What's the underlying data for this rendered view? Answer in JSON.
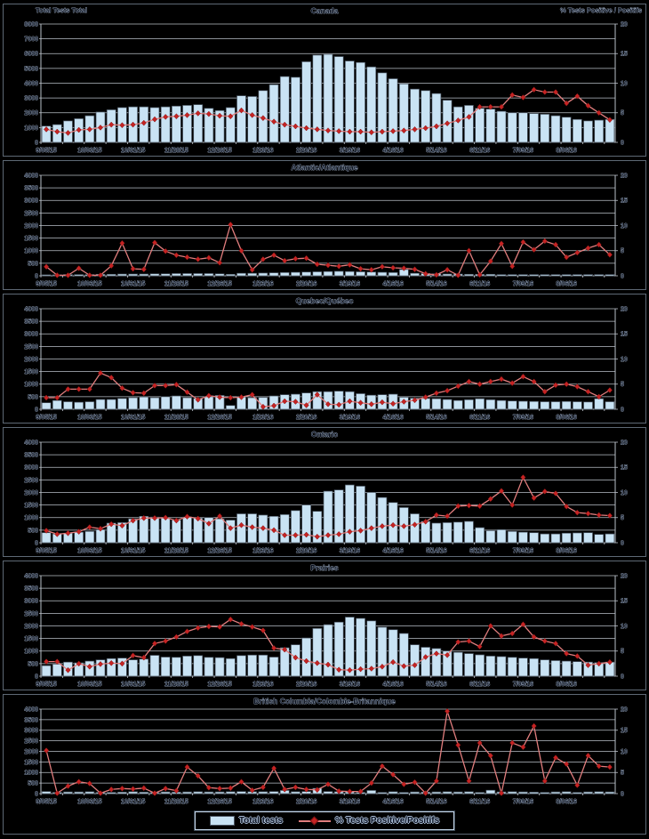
{
  "figure_name": "Respiratory virus detections surveillance charts",
  "legend": {
    "bar_label": "Total tests",
    "line_label": "% Tests Positive/Positifs"
  },
  "colors": {
    "background": "#000000",
    "bar_fill": "#c9e3f4",
    "bar_stroke": "#4b5663",
    "line": "#e07d7d",
    "marker": "#c62323",
    "marker_stroke": "#7e1414",
    "grid": "#b9bfc7",
    "axis": "#b9bfc7",
    "text_fill": "#0c1322",
    "text_halo": "#b4c4da",
    "panel_border": "#5e6975",
    "legend_border": "#c7d9ec"
  },
  "chart_data": {
    "type": "bar+line",
    "left_axis_label": "Total Tests Total",
    "right_axis": {
      "min": 0,
      "max": 20,
      "step": 5,
      "label": "% Tests Positive / Positifs"
    },
    "x_tick_every": 4,
    "x_tick_labels": [
      "9/05/15",
      "10/03/15",
      "10/31/15",
      "11/28/15",
      "12/26/15",
      "1/23/16",
      "2/20/16",
      "3/19/16",
      "4/16/16",
      "5/14/16",
      "6/11/16",
      "7/09/16",
      "8/06/16"
    ],
    "charts": [
      {
        "region": "Canada",
        "ylim_left": [
          0,
          8000
        ],
        "ytick_left": 1000,
        "bars": [
          1100,
          1200,
          1450,
          1600,
          1800,
          2050,
          2200,
          2350,
          2400,
          2400,
          2350,
          2400,
          2450,
          2500,
          2550,
          2300,
          2150,
          2350,
          3150,
          3100,
          3500,
          3900,
          4450,
          4400,
          5450,
          5900,
          5950,
          5800,
          5500,
          5400,
          5100,
          4700,
          4300,
          3950,
          3600,
          3500,
          3300,
          2850,
          2400,
          2500,
          2300,
          2250,
          2100,
          2000,
          2000,
          1950,
          1900,
          1800,
          1700,
          1550,
          1450,
          1500,
          1550
        ],
        "line": [
          2.2,
          1.8,
          1.6,
          2.1,
          2.2,
          2.5,
          3.0,
          2.9,
          3.0,
          3.3,
          3.9,
          4.3,
          4.4,
          4.6,
          4.9,
          4.8,
          4.5,
          4.4,
          5.4,
          4.6,
          4.1,
          3.5,
          3.0,
          2.7,
          2.4,
          2.2,
          2.0,
          1.9,
          1.8,
          1.8,
          1.7,
          1.8,
          1.9,
          2.0,
          2.2,
          2.4,
          2.7,
          3.2,
          3.7,
          4.3,
          6.0,
          6.0,
          6.0,
          8.0,
          7.6,
          8.9,
          8.5,
          8.5,
          6.6,
          7.8,
          6.2,
          5.0,
          3.8
        ]
      },
      {
        "region": "Atlantic/Atlantique",
        "ylim_left": [
          0,
          4000
        ],
        "ytick_left": 500,
        "bars": [
          40,
          40,
          50,
          50,
          50,
          60,
          60,
          70,
          70,
          70,
          80,
          80,
          90,
          90,
          90,
          90,
          80,
          60,
          100,
          100,
          110,
          120,
          130,
          140,
          150,
          160,
          170,
          180,
          170,
          160,
          150,
          140,
          130,
          250,
          100,
          90,
          80,
          70,
          70,
          60,
          60,
          60,
          50,
          50,
          50,
          50,
          50,
          50,
          50,
          50,
          50,
          50,
          50
        ],
        "line": [
          1.8,
          0.1,
          0.1,
          1.5,
          0.1,
          0.1,
          2.0,
          6.5,
          1.4,
          1.3,
          6.6,
          4.9,
          4.1,
          3.7,
          3.3,
          3.6,
          2.6,
          10.2,
          5.0,
          1.2,
          3.3,
          4.1,
          3.0,
          3.4,
          3.5,
          2.3,
          2.1,
          1.9,
          2.2,
          1.4,
          1.2,
          1.8,
          1.6,
          1.5,
          1.3,
          0.4,
          0.2,
          1.2,
          0.1,
          5.0,
          0.2,
          2.9,
          6.4,
          1.9,
          6.7,
          5.2,
          6.9,
          6.2,
          3.7,
          4.6,
          5.5,
          6.2,
          4.2
        ]
      },
      {
        "region": "Quebec/Québec",
        "ylim_left": [
          0,
          4000
        ],
        "ytick_left": 500,
        "bars": [
          260,
          350,
          300,
          280,
          300,
          390,
          390,
          430,
          460,
          490,
          460,
          500,
          530,
          460,
          430,
          500,
          550,
          150,
          490,
          460,
          470,
          530,
          580,
          600,
          650,
          700,
          700,
          720,
          700,
          620,
          560,
          580,
          600,
          480,
          440,
          430,
          420,
          390,
          350,
          380,
          420,
          380,
          350,
          330,
          320,
          310,
          300,
          300,
          310,
          300,
          290,
          420,
          300
        ],
        "line": [
          2.3,
          2.3,
          4.0,
          4.0,
          4.0,
          7.2,
          6.3,
          4.2,
          3.3,
          3.2,
          4.7,
          4.7,
          4.9,
          3.4,
          1.9,
          2.7,
          2.4,
          2.3,
          2.4,
          2.9,
          0.5,
          0.7,
          1.6,
          1.5,
          0.8,
          2.9,
          1.0,
          0.9,
          1.6,
          1.3,
          1.0,
          1.4,
          1.1,
          1.5,
          1.8,
          2.4,
          3.2,
          3.7,
          4.6,
          5.5,
          5.0,
          5.5,
          6.0,
          5.2,
          6.5,
          5.5,
          3.5,
          4.8,
          5.0,
          4.5,
          3.5,
          2.5,
          3.8
        ]
      },
      {
        "region": "Ontario",
        "ylim_left": [
          0,
          4000
        ],
        "ytick_left": 500,
        "bars": [
          400,
          350,
          380,
          420,
          450,
          520,
          780,
          800,
          950,
          1050,
          1020,
          980,
          900,
          1020,
          980,
          1000,
          950,
          900,
          1150,
          1150,
          1100,
          1050,
          1120,
          1280,
          1500,
          1250,
          2050,
          2100,
          2300,
          2250,
          2000,
          1800,
          1600,
          1400,
          1150,
          850,
          780,
          800,
          820,
          850,
          600,
          480,
          520,
          450,
          420,
          400,
          350,
          350,
          380,
          390,
          400,
          330,
          350
        ],
        "line": [
          2.4,
          1.7,
          1.9,
          2.2,
          3.1,
          2.8,
          3.7,
          3.4,
          4.4,
          4.9,
          4.9,
          5.0,
          4.4,
          5.2,
          4.8,
          3.8,
          5.3,
          2.9,
          3.5,
          3.1,
          2.9,
          2.5,
          1.5,
          1.5,
          1.6,
          1.2,
          1.5,
          1.7,
          2.2,
          2.4,
          2.9,
          3.3,
          3.5,
          3.3,
          3.6,
          4.2,
          5.5,
          5.3,
          7.3,
          7.4,
          7.3,
          8.7,
          10.3,
          7.5,
          13.0,
          8.9,
          10.2,
          9.8,
          7.2,
          6.0,
          5.8,
          5.5,
          5.4
        ]
      },
      {
        "region": "Prairies",
        "ylim_left": [
          0,
          4000
        ],
        "ytick_left": 500,
        "bars": [
          420,
          480,
          560,
          530,
          600,
          650,
          700,
          720,
          650,
          680,
          830,
          760,
          750,
          800,
          820,
          750,
          740,
          700,
          820,
          840,
          840,
          760,
          1130,
          1250,
          1520,
          1900,
          2050,
          2150,
          2350,
          2300,
          2200,
          1950,
          1850,
          1700,
          1250,
          1150,
          1100,
          1000,
          950,
          900,
          850,
          800,
          780,
          750,
          720,
          700,
          650,
          620,
          600,
          580,
          560,
          540,
          560
        ],
        "line": [
          2.9,
          2.9,
          1.2,
          2.5,
          1.9,
          2.4,
          2.6,
          2.5,
          4.1,
          3.7,
          6.5,
          7.0,
          7.8,
          8.9,
          9.6,
          9.9,
          9.8,
          11.3,
          10.4,
          9.8,
          9.1,
          5.6,
          5.3,
          3.7,
          3.0,
          2.6,
          2.3,
          1.3,
          1.2,
          1.4,
          1.5,
          1.9,
          2.8,
          2.0,
          2.2,
          3.8,
          4.5,
          4.2,
          6.8,
          7.0,
          5.9,
          10.0,
          8.0,
          8.5,
          10.3,
          7.8,
          7.0,
          6.5,
          4.5,
          4.0,
          2.2,
          2.5,
          2.8
        ]
      },
      {
        "region": "British Columbia/Colombie-Britannique",
        "ylim_left": [
          0,
          4000
        ],
        "ytick_left": 500,
        "bars": [
          100,
          60,
          80,
          80,
          90,
          60,
          60,
          70,
          90,
          70,
          60,
          80,
          70,
          80,
          90,
          80,
          80,
          90,
          100,
          90,
          90,
          100,
          150,
          90,
          100,
          250,
          100,
          90,
          80,
          60,
          150,
          60,
          90,
          60,
          80,
          70,
          80,
          90,
          80,
          90,
          60,
          160,
          80,
          90,
          80,
          70,
          60,
          80,
          90,
          60,
          80,
          90,
          80
        ],
        "line": [
          10.2,
          0.1,
          1.8,
          2.8,
          2.4,
          0.1,
          1.0,
          1.2,
          1.1,
          1.3,
          0.1,
          1.2,
          0.7,
          6.3,
          4.2,
          1.4,
          1.2,
          1.3,
          2.8,
          0.8,
          1.5,
          6.0,
          1.0,
          1.5,
          1.0,
          0.9,
          2.2,
          0.6,
          0.5,
          0.5,
          2.5,
          6.5,
          4.5,
          2.2,
          2.7,
          0.1,
          3.0,
          19.5,
          11.5,
          3.0,
          12.0,
          9.0,
          0.1,
          12.0,
          11.0,
          16.0,
          3.0,
          8.5,
          7.0,
          2.0,
          9.0,
          6.5,
          6.3
        ]
      }
    ]
  }
}
